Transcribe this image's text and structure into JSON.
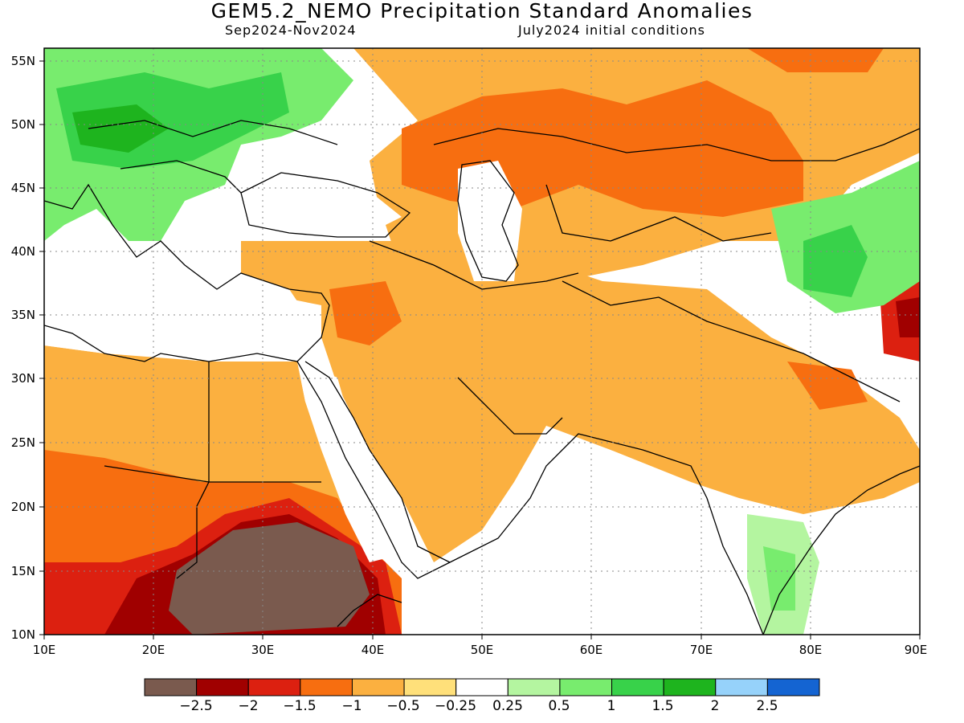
{
  "title": "GEM5.2_NEMO Precipitation Standard Anomalies",
  "subtitle_left": "Sep2024-Nov2024",
  "subtitle_right": "July2024 initial conditions",
  "lat_labels": [
    "55N",
    "50N",
    "45N",
    "40N",
    "35N",
    "30N",
    "25N",
    "20N",
    "15N",
    "10N"
  ],
  "lon_labels": [
    "10E",
    "20E",
    "30E",
    "40E",
    "50E",
    "60E",
    "70E",
    "80E",
    "90E"
  ],
  "colorbar": {
    "colors": [
      "#7a5a4e",
      "#a00000",
      "#dc2010",
      "#f76e10",
      "#fbb040",
      "#ffe07a",
      "#ffffff",
      "#b4f5a0",
      "#78ec6e",
      "#38d24a",
      "#1eb41e",
      "#96d2fa",
      "#1464d2"
    ],
    "labels": [
      "-2.5",
      "-2",
      "-1.5",
      "-1",
      "-0.5",
      "-0.25",
      "0.25",
      "0.5",
      "1",
      "1.5",
      "2",
      "2.5"
    ]
  },
  "palette": {
    "strong_dry": "#7a5a4e",
    "very_dry": "#a00000",
    "dry": "#dc2010",
    "mod_dry": "#f76e10",
    "light_dry": "#fbb040",
    "slight_dry": "#ffe07a",
    "slight_wet": "#b4f5a0",
    "light_wet": "#78ec6e",
    "wet": "#38d24a",
    "very_wet": "#1eb41e"
  }
}
